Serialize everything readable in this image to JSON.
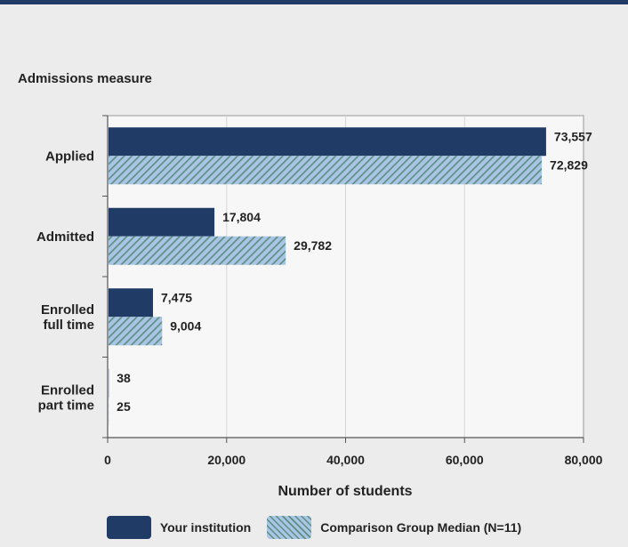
{
  "chart_data": {
    "type": "bar",
    "orientation": "horizontal",
    "y_axis_title": "Admissions measure",
    "xlabel": "Number of students",
    "categories": [
      [
        "Applied"
      ],
      [
        "Admitted"
      ],
      [
        "Enrolled",
        "full time"
      ],
      [
        "Enrolled",
        "part time"
      ]
    ],
    "series": [
      {
        "name": "Your institution",
        "values": [
          73557,
          17804,
          7475,
          38
        ],
        "labels": [
          "73,557",
          "17,804",
          "7,475",
          "38"
        ],
        "color": "#1f3b66"
      },
      {
        "name": "Comparison Group Median (N=11)",
        "values": [
          72829,
          29782,
          9004,
          25
        ],
        "labels": [
          "72,829",
          "29,782",
          "9,004",
          "25"
        ],
        "color": "#a9c4e4",
        "pattern": "diagonal-hatch"
      }
    ],
    "xlim": [
      0,
      80000
    ],
    "xticks": [
      0,
      20000,
      40000,
      60000,
      80000
    ],
    "xtick_labels": [
      "0",
      "20,000",
      "40,000",
      "60,000",
      "80,000"
    ],
    "grid": "vertical",
    "legend_position": "bottom"
  }
}
